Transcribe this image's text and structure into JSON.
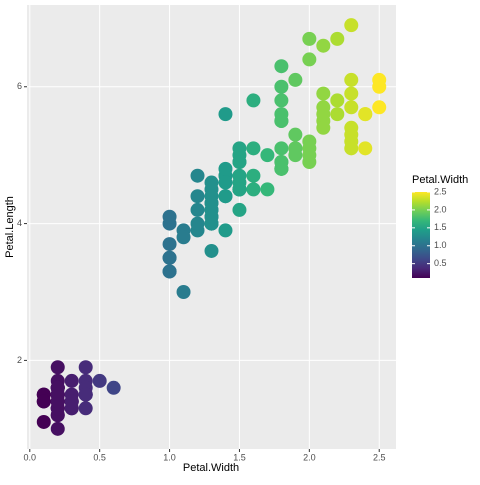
{
  "chart_data": {
    "type": "scatter",
    "x_label": "Petal.Width",
    "y_label": "Petal.Length",
    "x": [
      0.2,
      0.2,
      0.2,
      0.2,
      0.2,
      0.4,
      0.3,
      0.2,
      0.2,
      0.1,
      0.2,
      0.2,
      0.1,
      0.1,
      0.2,
      0.4,
      0.4,
      0.3,
      0.3,
      0.3,
      0.2,
      0.4,
      0.2,
      0.5,
      0.2,
      0.2,
      0.4,
      0.2,
      0.2,
      0.2,
      0.2,
      0.4,
      0.1,
      0.2,
      0.2,
      0.2,
      0.2,
      0.1,
      0.2,
      0.2,
      0.3,
      0.3,
      0.2,
      0.6,
      0.4,
      0.3,
      0.2,
      0.2,
      0.2,
      0.2,
      1.4,
      1.5,
      1.5,
      1.3,
      1.5,
      1.3,
      1.6,
      1.0,
      1.3,
      1.4,
      1.0,
      1.5,
      1.0,
      1.4,
      1.3,
      1.4,
      1.5,
      1.0,
      1.5,
      1.1,
      1.8,
      1.3,
      1.5,
      1.2,
      1.3,
      1.4,
      1.4,
      1.7,
      1.5,
      1.0,
      1.1,
      1.0,
      1.2,
      1.6,
      1.5,
      1.6,
      1.5,
      1.3,
      1.3,
      1.3,
      1.2,
      1.4,
      1.2,
      1.0,
      1.3,
      1.2,
      1.3,
      1.3,
      1.1,
      1.3,
      2.5,
      1.9,
      2.1,
      1.8,
      2.2,
      2.1,
      1.7,
      1.8,
      1.8,
      2.5,
      2.0,
      1.9,
      2.1,
      2.0,
      2.4,
      2.3,
      1.8,
      2.2,
      2.3,
      1.5,
      2.3,
      2.0,
      2.0,
      1.8,
      2.1,
      1.8,
      1.8,
      1.8,
      2.1,
      1.6,
      1.9,
      2.0,
      2.2,
      1.5,
      1.4,
      2.3,
      2.4,
      1.8,
      1.8,
      2.1,
      2.4,
      2.3,
      1.9,
      2.3,
      2.5,
      2.3,
      1.9,
      2.0,
      2.3,
      1.8
    ],
    "y": [
      1.4,
      1.4,
      1.3,
      1.5,
      1.4,
      1.7,
      1.4,
      1.5,
      1.4,
      1.5,
      1.5,
      1.6,
      1.4,
      1.1,
      1.2,
      1.5,
      1.3,
      1.4,
      1.7,
      1.5,
      1.7,
      1.5,
      1.0,
      1.7,
      1.9,
      1.6,
      1.6,
      1.5,
      1.4,
      1.6,
      1.6,
      1.5,
      1.5,
      1.4,
      1.5,
      1.2,
      1.3,
      1.4,
      1.3,
      1.5,
      1.3,
      1.3,
      1.3,
      1.6,
      1.9,
      1.4,
      1.6,
      1.4,
      1.5,
      1.4,
      4.7,
      4.5,
      4.9,
      4.0,
      4.6,
      4.5,
      4.7,
      3.3,
      4.6,
      3.9,
      3.5,
      4.2,
      4.0,
      4.7,
      3.6,
      4.4,
      4.5,
      4.1,
      4.5,
      3.9,
      4.8,
      4.0,
      4.9,
      4.7,
      4.3,
      4.4,
      4.8,
      5.0,
      4.5,
      3.5,
      3.8,
      3.7,
      3.9,
      5.1,
      4.5,
      4.5,
      4.7,
      4.4,
      4.1,
      4.0,
      4.4,
      4.6,
      4.0,
      3.3,
      4.2,
      4.2,
      4.2,
      4.3,
      3.0,
      4.1,
      6.0,
      5.1,
      5.9,
      5.6,
      5.8,
      6.6,
      4.5,
      6.3,
      5.8,
      6.1,
      5.1,
      5.3,
      5.5,
      5.0,
      5.1,
      5.3,
      5.5,
      6.7,
      6.9,
      5.0,
      5.7,
      4.9,
      6.7,
      4.9,
      5.7,
      6.0,
      4.8,
      4.9,
      5.6,
      5.8,
      6.1,
      6.4,
      5.6,
      5.1,
      5.6,
      6.1,
      5.6,
      5.5,
      4.8,
      5.4,
      5.6,
      5.1,
      5.1,
      5.9,
      5.7,
      5.2,
      5.0,
      5.2,
      5.4,
      5.1
    ],
    "xlim": [
      -0.02,
      2.62
    ],
    "ylim": [
      0.705,
      7.195
    ],
    "xticks": [
      {
        "value": 0,
        "label": "0.0"
      },
      0.5,
      {
        "value": 1,
        "label": "1.0"
      },
      1.5,
      {
        "value": 2,
        "label": "2.0"
      },
      2.5
    ],
    "yticks": [
      2,
      4,
      6
    ],
    "grid": true,
    "colormap": "viridis",
    "legend": {
      "title": "Petal.Width",
      "position": "right",
      "limits": [
        0.1,
        2.5
      ],
      "ticks": [
        0.5,
        {
          "value": 1,
          "label": "1.0"
        },
        1.5,
        {
          "value": 2,
          "label": "2.0"
        },
        2.5
      ]
    }
  }
}
